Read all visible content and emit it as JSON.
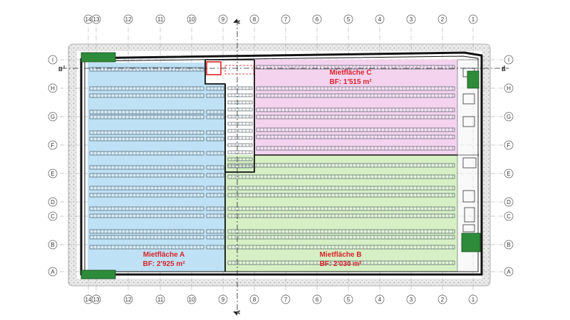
{
  "grid": {
    "columns": [
      "14",
      "13",
      "12",
      "11",
      "10",
      "9",
      "8",
      "7",
      "6",
      "5",
      "4",
      "3",
      "2",
      "1"
    ],
    "rows": [
      "I",
      "H",
      "G",
      "F",
      "E",
      "D",
      "C",
      "B",
      "A"
    ]
  },
  "section_markers": {
    "horizontal": "A",
    "vertical": "B"
  },
  "areas": [
    {
      "name": "Mietfläche A",
      "area": "BF: 2'925 m²",
      "color": "#bfe1f5"
    },
    {
      "name": "Mietfläche B",
      "area": "BF: 2'030 m²",
      "color": "#d6efc4"
    },
    {
      "name": "Mietfläche C",
      "area": "BF: 1'515 m²",
      "color": "#f4d3ee"
    }
  ],
  "colors": {
    "label_red": "#d9222a",
    "shelf": "#3a4a56",
    "wall": "#111111",
    "stair_green": "#2e8b3a",
    "hatch": "#b5b5b5"
  }
}
